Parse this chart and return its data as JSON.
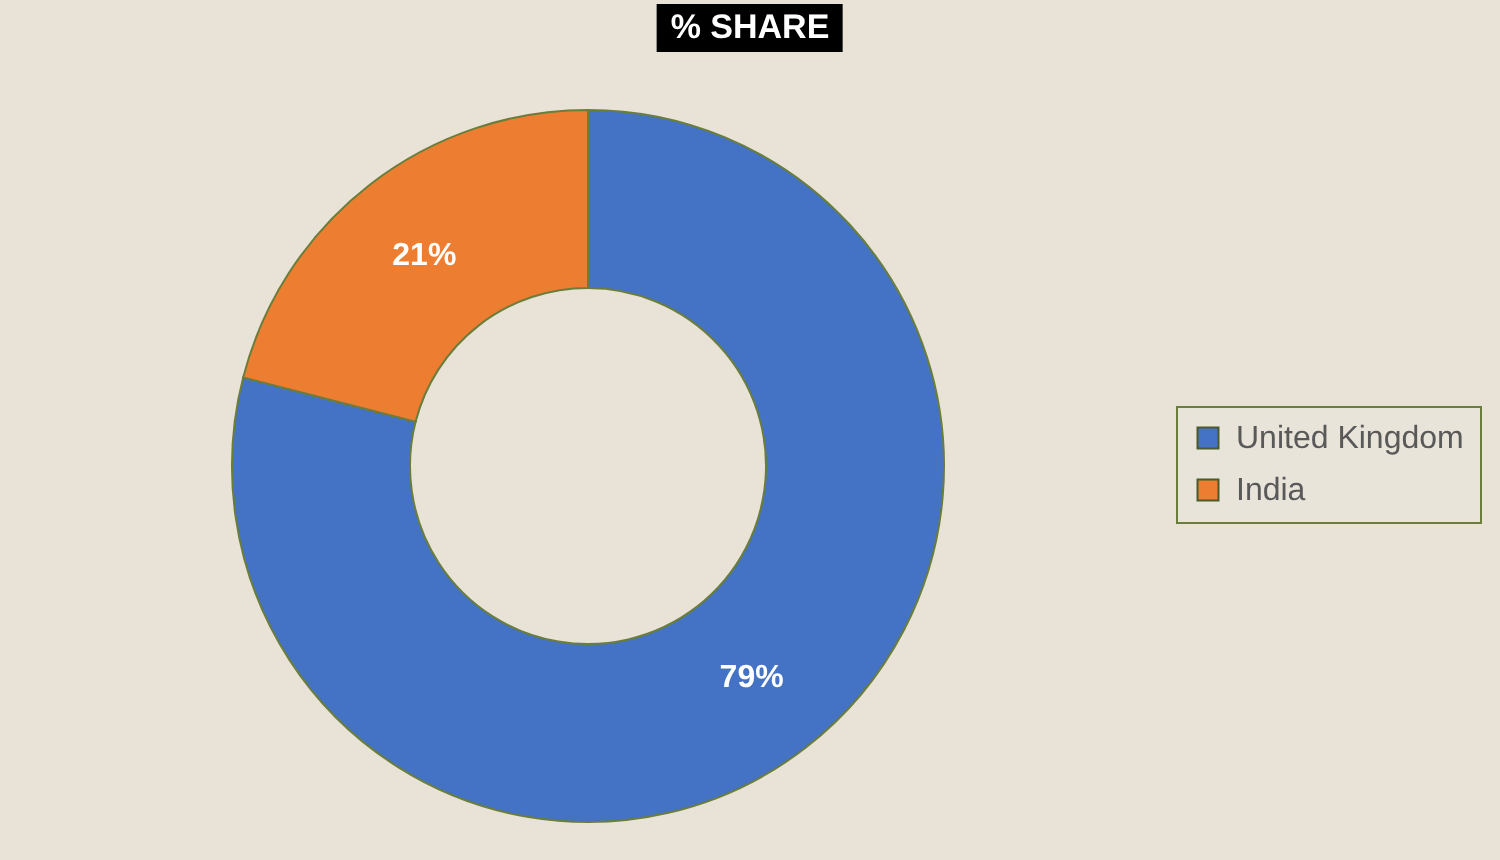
{
  "chart_data": {
    "type": "donut",
    "title": "% SHARE",
    "categories": [
      "United Kingdom",
      "India"
    ],
    "values": [
      79,
      21
    ],
    "colors": [
      "#4472c4",
      "#ed7d31"
    ],
    "value_labels": [
      "79%",
      "21%"
    ],
    "legend": "right"
  }
}
